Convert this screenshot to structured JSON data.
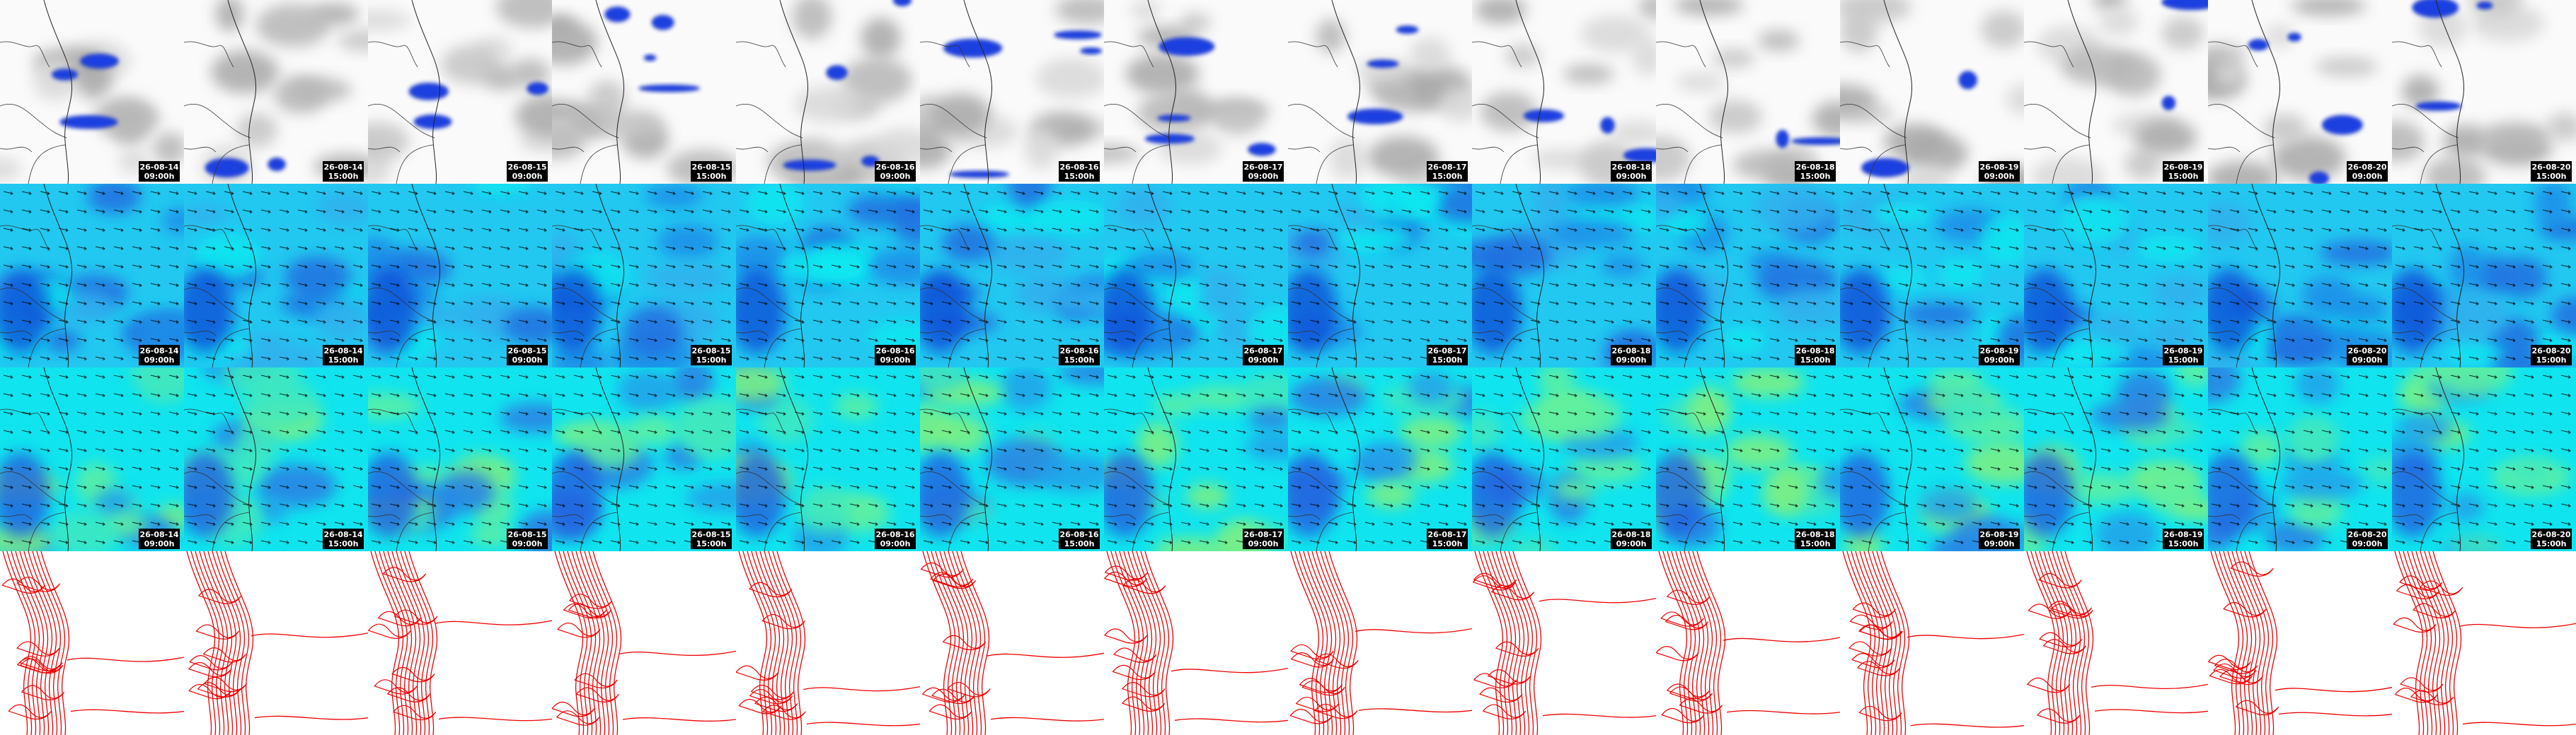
{
  "rows": [
    {
      "labels": [
        {
          "date": "26-08-14",
          "time": "09:00h"
        },
        {
          "date": "26-08-14",
          "time": "15:00h"
        },
        {
          "date": "26-08-15",
          "time": "09:00h"
        },
        {
          "date": "26-08-15",
          "time": "15:00h"
        },
        {
          "date": "26-08-16",
          "time": "09:00h"
        },
        {
          "date": "26-08-16",
          "time": "15:00h"
        },
        {
          "date": "26-08-17",
          "time": "09:00h"
        },
        {
          "date": "26-08-17",
          "time": "15:00h"
        },
        {
          "date": "26-08-18",
          "time": "09:00h"
        },
        {
          "date": "26-08-18",
          "time": "15:00h"
        },
        {
          "date": "26-08-19",
          "time": "09:00h"
        },
        {
          "date": "26-08-19",
          "time": "15:00h"
        },
        {
          "date": "26-08-20",
          "time": "09:00h"
        },
        {
          "date": "26-08-20",
          "time": "15:00h"
        }
      ]
    },
    {
      "labels": [
        {
          "date": "26-08-14",
          "time": "09:00h"
        },
        {
          "date": "26-08-14",
          "time": "15:00h"
        },
        {
          "date": "26-08-15",
          "time": "09:00h"
        },
        {
          "date": "26-08-15",
          "time": "15:00h"
        },
        {
          "date": "26-08-16",
          "time": "09:00h"
        },
        {
          "date": "26-08-16",
          "time": "15:00h"
        },
        {
          "date": "26-08-17",
          "time": "09:00h"
        },
        {
          "date": "26-08-17",
          "time": "15:00h"
        },
        {
          "date": "26-08-18",
          "time": "09:00h"
        },
        {
          "date": "26-08-18",
          "time": "15:00h"
        },
        {
          "date": "26-08-19",
          "time": "09:00h"
        },
        {
          "date": "26-08-19",
          "time": "15:00h"
        },
        {
          "date": "26-08-20",
          "time": "09:00h"
        },
        {
          "date": "26-08-20",
          "time": "15:00h"
        }
      ]
    },
    {
      "labels": [
        {
          "date": "26-08-14",
          "time": "09:00h"
        },
        {
          "date": "26-08-14",
          "time": "15:00h"
        },
        {
          "date": "26-08-15",
          "time": "09:00h"
        },
        {
          "date": "26-08-15",
          "time": "15:00h"
        },
        {
          "date": "26-08-16",
          "time": "09:00h"
        },
        {
          "date": "26-08-16",
          "time": "15:00h"
        },
        {
          "date": "26-08-17",
          "time": "09:00h"
        },
        {
          "date": "26-08-17",
          "time": "15:00h"
        },
        {
          "date": "26-08-18",
          "time": "09:00h"
        },
        {
          "date": "26-08-18",
          "time": "15:00h"
        },
        {
          "date": "26-08-19",
          "time": "09:00h"
        },
        {
          "date": "26-08-19",
          "time": "15:00h"
        },
        {
          "date": "26-08-20",
          "time": "09:00h"
        },
        {
          "date": "26-08-20",
          "time": "15:00h"
        }
      ]
    }
  ]
}
